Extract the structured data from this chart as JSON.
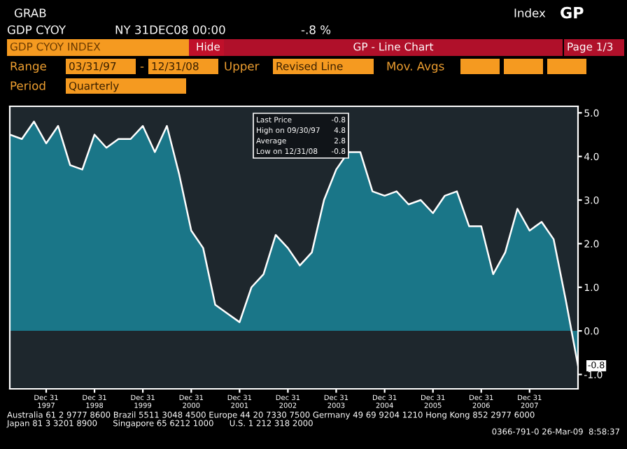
{
  "chart_data": {
    "type": "area",
    "x": [
      "1997-03-31",
      "1997-06-30",
      "1997-09-30",
      "1997-12-31",
      "1998-03-31",
      "1998-06-30",
      "1998-09-30",
      "1998-12-31",
      "1999-03-31",
      "1999-06-30",
      "1999-09-30",
      "1999-12-31",
      "2000-03-31",
      "2000-06-30",
      "2000-09-30",
      "2000-12-31",
      "2001-03-31",
      "2001-06-30",
      "2001-09-30",
      "2001-12-31",
      "2002-03-31",
      "2002-06-30",
      "2002-09-30",
      "2002-12-31",
      "2003-03-31",
      "2003-06-30",
      "2003-09-30",
      "2003-12-31",
      "2004-03-31",
      "2004-06-30",
      "2004-09-30",
      "2004-12-31",
      "2005-03-31",
      "2005-06-30",
      "2005-09-30",
      "2005-12-31",
      "2006-03-31",
      "2006-06-30",
      "2006-09-30",
      "2006-12-31",
      "2007-03-31",
      "2007-06-30",
      "2007-09-30",
      "2007-12-31",
      "2008-03-31",
      "2008-06-30",
      "2008-09-30",
      "2008-12-31"
    ],
    "series": [
      {
        "color": "#1a7688",
        "values": [
          4.5,
          4.4,
          4.8,
          4.3,
          4.7,
          3.8,
          3.7,
          4.5,
          4.2,
          4.4,
          4.4,
          4.7,
          4.1,
          4.7,
          3.6,
          2.3,
          1.9,
          0.6,
          0.4,
          0.2,
          1.0,
          1.3,
          2.2,
          1.9,
          1.5,
          1.8,
          3.0,
          3.7,
          4.1,
          4.1,
          3.2,
          3.1,
          3.2,
          2.9,
          3.0,
          2.7,
          3.1,
          3.2,
          2.4,
          2.4,
          1.3,
          1.8,
          2.8,
          2.3,
          2.5,
          2.1,
          0.7,
          -0.8
        ]
      }
    ],
    "xlim": [
      "1997-03-31",
      "2008-12-31"
    ],
    "xticks": [
      {
        "value": "1997-12-31",
        "label": "Dec 31\n1997"
      },
      {
        "value": "1998-12-31",
        "label": "Dec 31\n1998"
      },
      {
        "value": "1999-12-31",
        "label": "Dec 31\n1999"
      },
      {
        "value": "2000-12-31",
        "label": "Dec 31\n2000"
      },
      {
        "value": "2001-12-31",
        "label": "Dec 31\n2001"
      },
      {
        "value": "2002-12-31",
        "label": "Dec 31\n2002"
      },
      {
        "value": "2003-12-31",
        "label": "Dec 31\n2003"
      },
      {
        "value": "2004-12-31",
        "label": "Dec 31\n2004"
      },
      {
        "value": "2005-12-31",
        "label": "Dec 31\n2005"
      },
      {
        "value": "2006-12-31",
        "label": "Dec 31\n2006"
      },
      {
        "value": "2007-12-31",
        "label": "Dec 31\n2007"
      }
    ],
    "ylim": [
      -1.33,
      5.15
    ],
    "yticks": [
      {
        "value": 5,
        "label": "5.0"
      },
      {
        "value": 4,
        "label": "4.0"
      },
      {
        "value": 3,
        "label": "3.0"
      },
      {
        "value": 2,
        "label": "2.0"
      },
      {
        "value": 1,
        "label": "1.0"
      },
      {
        "value": 0,
        "label": "0.0"
      },
      {
        "value": -1,
        "label": "-1.0"
      }
    ],
    "annotations": [
      "GRAB",
      "GDP CYOY",
      "NY 31DEC08 00:00",
      "-.8 %",
      "Index",
      "GP",
      "GDP CYOY INDEX",
      "Hide",
      "GP - Line Chart",
      "Page 1/3",
      "Range",
      "03/31/97",
      "-",
      "12/31/08",
      "Upper",
      "Revised Line",
      "Mov. Avgs",
      "Period",
      "Quarterly",
      "Last Price",
      "-0.8",
      "High on 09/30/97",
      "4.8",
      "Average",
      "2.8",
      "Low on 12/31/08",
      "-0.8",
      {
        "text": "-0.8",
        "x": "2008-12-31",
        "y": -0.8
      },
      "Australia 61 2 9777 8600 Brazil 5511 3048 4500 Europe 44 20 7330 7500 Germany 49 69 9204 1210 Hong Kong 852 2977 6000",
      "Japan 81 3 3201 8900      Singapore 65 6212 1000      U.S. 1 212 318 2000",
      "0366-791-0 26-Mar-09  8:58:37"
    ],
    "grid": false,
    "legend": false
  }
}
